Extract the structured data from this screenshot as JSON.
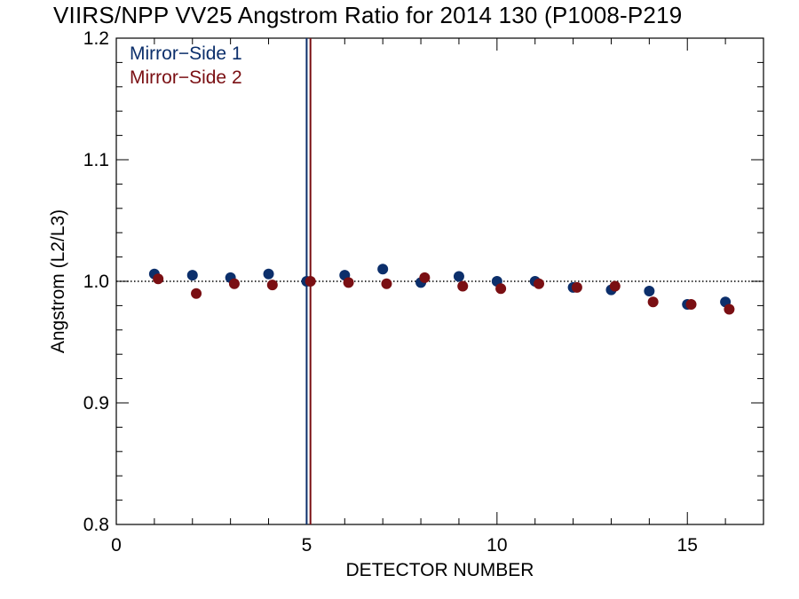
{
  "chart_data": {
    "type": "scatter",
    "title": "VIIRS/NPP VV25 Angstrom Ratio for 2014 130 (P1008-P219",
    "xlabel": "DETECTOR NUMBER",
    "ylabel": "Angstrom (L2/L3)",
    "xlim": [
      0,
      17
    ],
    "ylim": [
      0.8,
      1.2
    ],
    "xticks": [
      0,
      5,
      10,
      15
    ],
    "xtick_labels": [
      "0",
      "5",
      "10",
      "15"
    ],
    "yticks": [
      0.8,
      0.9,
      1.0,
      1.1,
      1.2
    ],
    "ytick_labels": [
      "0.8",
      "0.9",
      "1.0",
      "1.1",
      "1.2"
    ],
    "reference_line_y": 1.0,
    "legend_placement": "top-left",
    "series": [
      {
        "name": "Mirror−Side 1",
        "color": "#0c2f6b",
        "x": [
          1,
          2,
          3,
          4,
          5,
          6,
          7,
          8,
          9,
          10,
          11,
          12,
          13,
          14,
          15,
          16
        ],
        "y": [
          1.006,
          1.005,
          1.003,
          1.006,
          1.0,
          1.005,
          1.01,
          0.999,
          1.004,
          1.0,
          1.0,
          0.995,
          0.993,
          0.992,
          0.981,
          0.983
        ]
      },
      {
        "name": "Mirror−Side 2",
        "color": "#7a0f13",
        "x": [
          1.1,
          2.1,
          3.1,
          4.1,
          5.1,
          6.1,
          7.1,
          8.1,
          9.1,
          10.1,
          11.1,
          12.1,
          13.1,
          14.1,
          15.1,
          16.1
        ],
        "y": [
          1.002,
          0.99,
          0.998,
          0.997,
          1.0,
          0.999,
          0.998,
          1.003,
          0.996,
          0.994,
          0.998,
          0.995,
          0.996,
          0.983,
          0.981,
          0.977
        ]
      }
    ],
    "vertical_lines": [
      {
        "x": 5.0,
        "color": "#0c2f6b"
      },
      {
        "x": 5.1,
        "color": "#7a0f13"
      }
    ]
  }
}
